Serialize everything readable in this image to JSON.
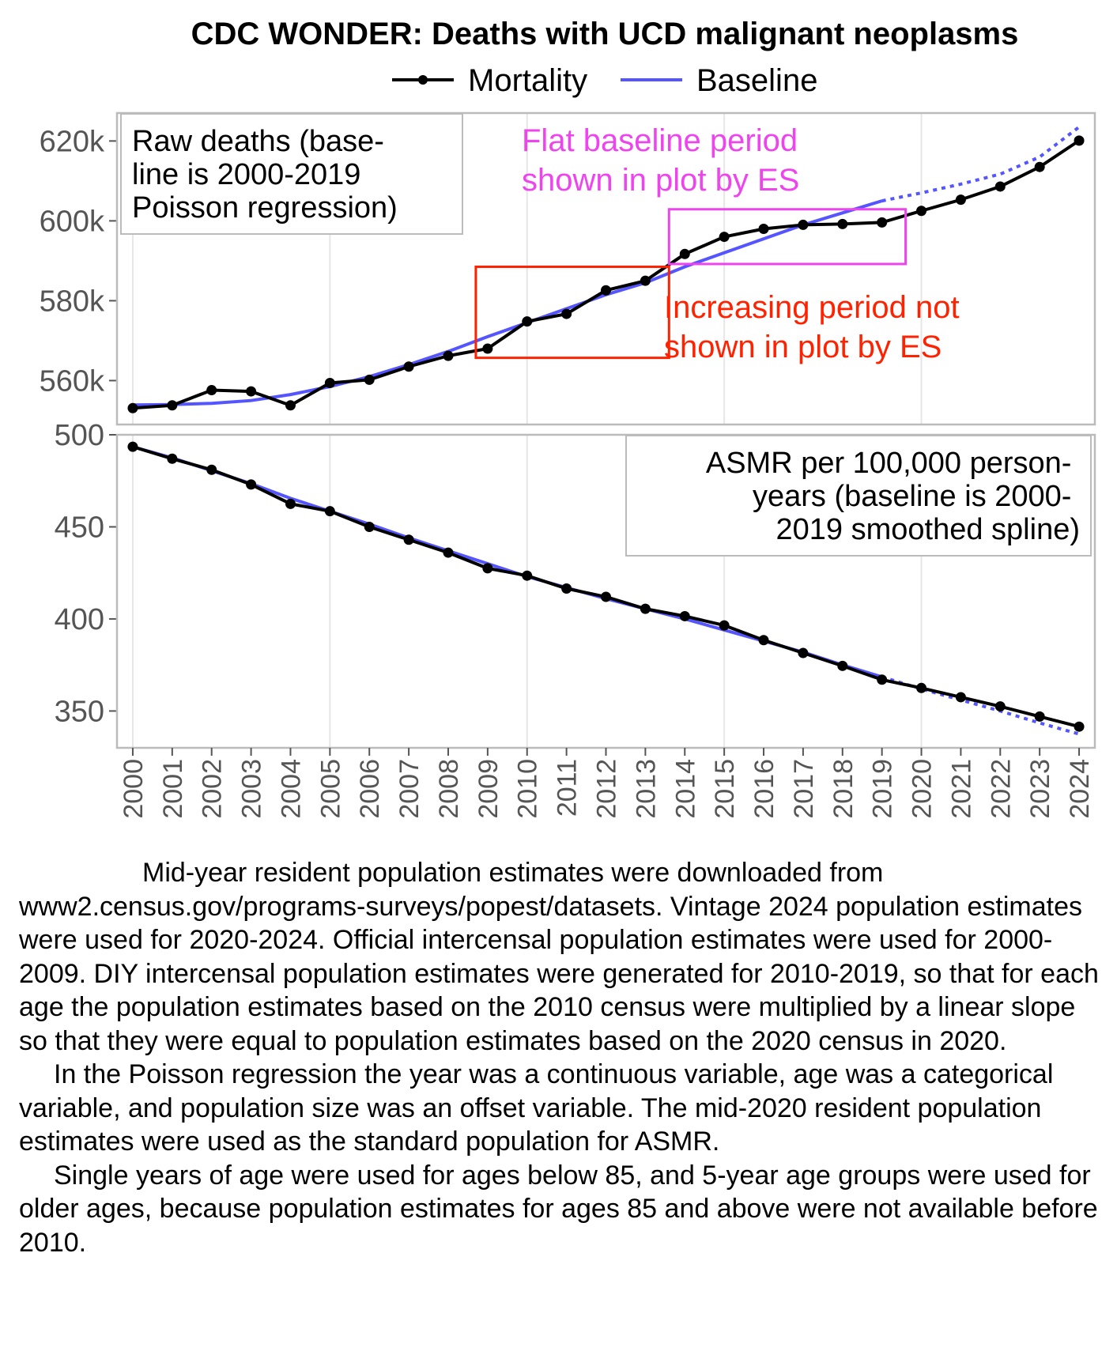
{
  "chart_data": [
    {
      "type": "line",
      "title": "CDC WONDER: Deaths with UCD malignant neoplasms",
      "legend": [
        "Mortality",
        "Baseline"
      ],
      "legend_position": "top",
      "panel_label_lines": [
        "Raw deaths (base-",
        "line is 2000-2019",
        "Poisson regression)"
      ],
      "x": [
        2000,
        2001,
        2002,
        2003,
        2004,
        2005,
        2006,
        2007,
        2008,
        2009,
        2010,
        2011,
        2012,
        2013,
        2014,
        2015,
        2016,
        2017,
        2018,
        2019,
        2020,
        2021,
        2022,
        2023,
        2024
      ],
      "xlim": [
        1999.6,
        2024.4
      ],
      "ylim": [
        549000,
        627000
      ],
      "yticks": [
        560000,
        580000,
        600000,
        620000
      ],
      "ytick_labels": [
        "560k",
        "580k",
        "600k",
        "620k"
      ],
      "grid": true,
      "series": [
        {
          "name": "Mortality",
          "color": "#000000",
          "style": "line+points",
          "values": [
            553100,
            553800,
            557600,
            557300,
            553800,
            559400,
            560200,
            563500,
            566200,
            568000,
            574800,
            576700,
            582600,
            585000,
            591700,
            596000,
            598000,
            599000,
            599200,
            599600,
            602500,
            605300,
            608600,
            613500,
            620100
          ]
        },
        {
          "name": "Baseline",
          "color": "#5555ff",
          "style": "line, dotted after 2019",
          "values": [
            553900,
            554000,
            554300,
            555000,
            556500,
            558500,
            561000,
            564000,
            567300,
            571000,
            574500,
            578000,
            581500,
            584500,
            588500,
            592000,
            595500,
            599000,
            602000,
            605000,
            607000,
            609200,
            611700,
            616000,
            623500
          ]
        }
      ],
      "annotations": [
        {
          "text_lines": [
            "Flat baseline period",
            "shown in plot by ES"
          ],
          "color": "#ee44ee",
          "box_x": [
            2013.6,
            2019.6
          ],
          "box_y": [
            589200,
            602900
          ]
        },
        {
          "text_lines": [
            "Increasing period not",
            "shown in plot by ES"
          ],
          "color": "#ff2200",
          "box_x": [
            2008.7,
            2013.6
          ],
          "box_y": [
            565700,
            588500
          ]
        }
      ]
    },
    {
      "type": "line",
      "panel_label_lines": [
        "ASMR per 100,000 person-",
        "years (baseline is 2000-",
        "2019 smoothed spline)"
      ],
      "x": [
        2000,
        2001,
        2002,
        2003,
        2004,
        2005,
        2006,
        2007,
        2008,
        2009,
        2010,
        2011,
        2012,
        2013,
        2014,
        2015,
        2016,
        2017,
        2018,
        2019,
        2020,
        2021,
        2022,
        2023,
        2024
      ],
      "xlim": [
        1999.6,
        2024.4
      ],
      "ylim": [
        330,
        500
      ],
      "yticks": [
        350,
        400,
        450,
        500
      ],
      "ytick_labels": [
        "350",
        "400",
        "450",
        "500"
      ],
      "xtick_labels": [
        "2000",
        "2001",
        "2002",
        "2003",
        "2004",
        "2005",
        "2006",
        "2007",
        "2008",
        "2009",
        "2010",
        "2011",
        "2012",
        "2013",
        "2014",
        "2015",
        "2016",
        "2017",
        "2018",
        "2019",
        "2020",
        "2021",
        "2022",
        "2023",
        "2024"
      ],
      "grid": true,
      "series": [
        {
          "name": "Mortality",
          "color": "#000000",
          "style": "line+points",
          "values": [
            493.5,
            487.0,
            481.0,
            473.0,
            462.5,
            458.5,
            450.0,
            443.0,
            436.0,
            427.5,
            423.5,
            416.5,
            412.0,
            405.5,
            401.5,
            396.5,
            388.5,
            381.5,
            374.5,
            367.0,
            362.5,
            357.5,
            352.5,
            347.0,
            341.5
          ]
        },
        {
          "name": "Baseline",
          "color": "#5555ff",
          "style": "line, dotted after 2019",
          "values": [
            493.5,
            487.5,
            480.5,
            473.5,
            465.5,
            458.5,
            451.5,
            444.0,
            437.0,
            430.0,
            423.0,
            417.0,
            411.0,
            405.5,
            400.0,
            394.0,
            388.0,
            382.0,
            375.0,
            368.5,
            362.0,
            356.0,
            350.0,
            343.5,
            337.5
          ]
        }
      ]
    }
  ],
  "caption": [
    "Mid-year resident population estimates were downloaded from www2.census.gov/programs-surveys/popest/datasets. Vintage 2024 population estimates were used for 2020-2024. Official intercensal population estimates were used for 2000-2009. DIY intercensal population estimates were generated for 2010-2019, so that for each age the population estimates based on the 2010 census were multiplied by a linear slope so that they were equal to population estimates based on the 2020 census in 2020.",
    "In the Poisson regression the year was a continuous variable, age was a categorical variable, and population size was an offset variable. The mid-2020 resident population estimates were used as the standard population for ASMR.",
    "Single years of age were used for ages below 85, and 5-year age groups were used for older ages, because population estimates for ages 85 and above were not available before 2010."
  ]
}
